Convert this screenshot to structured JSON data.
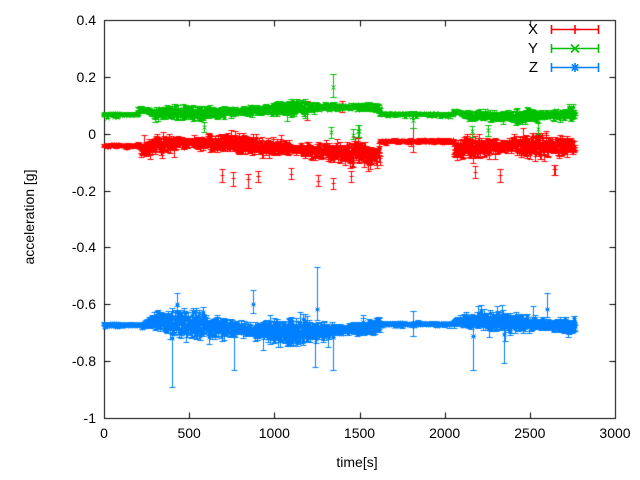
{
  "figure": {
    "background": "#ffffff",
    "text_color": "#000000",
    "axis_color": "#000000"
  },
  "chart_data": {
    "type": "line",
    "style": "yerrorbars-with-points",
    "title": "",
    "xlabel": "time[s]",
    "ylabel": "acceleration [g]",
    "xlim": [
      0,
      3000
    ],
    "ylim": [
      -1,
      0.4
    ],
    "grid": false,
    "xticks": [
      0,
      500,
      1000,
      1500,
      2000,
      2500,
      3000
    ],
    "xticklabels": [
      "0",
      "500",
      "1000",
      "1500",
      "2000",
      "2500",
      "3000"
    ],
    "yticks": [
      0.4,
      0.2,
      0,
      -0.2,
      -0.4,
      -0.6,
      -0.8,
      -1
    ],
    "yticklabels": [
      "0.4",
      "0.2",
      "0",
      "-0.2",
      "-0.4",
      "-0.6",
      "-0.8",
      "-1"
    ],
    "legend": {
      "position": "top-right-inside",
      "entries": [
        "X",
        "Y",
        "Z"
      ]
    },
    "sample_interval_s": 2,
    "time_end_s": 2764,
    "series": [
      {
        "name": "X",
        "color": "#ff0000",
        "marker": "plus",
        "segments": [
          {
            "t0": 0,
            "t1": 215,
            "mean": -0.04,
            "amp": 0.004,
            "ebar": 0.005
          },
          {
            "t0": 215,
            "t1": 1620,
            "mean": -0.06,
            "amp": 0.028,
            "ebar": 0.02
          },
          {
            "t0": 1620,
            "t1": 2052,
            "mean": -0.025,
            "amp": 0.004,
            "ebar": 0.006
          },
          {
            "t0": 2052,
            "t1": 2764,
            "mean": -0.055,
            "amp": 0.026,
            "ebar": 0.018
          }
        ],
        "spikes": [
          {
            "t": 690,
            "v": -0.145,
            "eu": 0.02,
            "ed": 0.025
          },
          {
            "t": 760,
            "v": -0.155,
            "eu": 0.02,
            "ed": 0.03
          },
          {
            "t": 845,
            "v": -0.16,
            "eu": 0.02,
            "ed": 0.03
          },
          {
            "t": 905,
            "v": -0.15,
            "eu": 0.02,
            "ed": 0.02
          },
          {
            "t": 1100,
            "v": -0.14,
            "eu": 0.02,
            "ed": 0.02
          },
          {
            "t": 1190,
            "v": 0.08,
            "eu": 0.035,
            "ed": 0.03
          },
          {
            "t": 1258,
            "v": -0.165,
            "eu": 0.02,
            "ed": 0.02
          },
          {
            "t": 1342,
            "v": -0.175,
            "eu": 0.02,
            "ed": 0.02
          },
          {
            "t": 1398,
            "v": 0.095,
            "eu": 0.02,
            "ed": 0.02
          },
          {
            "t": 1452,
            "v": -0.15,
            "eu": 0.02,
            "ed": 0.02
          },
          {
            "t": 1815,
            "v": -0.025,
            "eu": 0.045,
            "ed": 0.04
          },
          {
            "t": 2180,
            "v": -0.135,
            "eu": 0.02,
            "ed": 0.02
          },
          {
            "t": 2325,
            "v": -0.145,
            "eu": 0.02,
            "ed": 0.025
          },
          {
            "t": 2645,
            "v": -0.125,
            "eu": 0.015,
            "ed": 0.02
          }
        ]
      },
      {
        "name": "Y",
        "color": "#00c000",
        "marker": "cross",
        "segments": [
          {
            "t0": 0,
            "t1": 200,
            "mean": 0.068,
            "amp": 0.004,
            "ebar": 0.005
          },
          {
            "t0": 200,
            "t1": 1620,
            "mean": 0.088,
            "amp": 0.022,
            "ebar": 0.015
          },
          {
            "t0": 1620,
            "t1": 2052,
            "mean": 0.07,
            "amp": 0.004,
            "ebar": 0.006
          },
          {
            "t0": 2052,
            "t1": 2764,
            "mean": 0.082,
            "amp": 0.022,
            "ebar": 0.015
          }
        ],
        "spikes": [
          {
            "t": 590,
            "v": 0.025,
            "eu": 0.015,
            "ed": 0.02
          },
          {
            "t": 1330,
            "v": 0.005,
            "eu": 0.02,
            "ed": 0.02
          },
          {
            "t": 1345,
            "v": 0.165,
            "eu": 0.045,
            "ed": 0.035
          },
          {
            "t": 1460,
            "v": -0.005,
            "eu": 0.02,
            "ed": 0.015
          },
          {
            "t": 1495,
            "v": 0.01,
            "eu": 0.02,
            "ed": 0.02
          },
          {
            "t": 1815,
            "v": 0.05,
            "eu": 0.026,
            "ed": 0.03
          },
          {
            "t": 2160,
            "v": 0.008,
            "eu": 0.02,
            "ed": 0.02
          },
          {
            "t": 2255,
            "v": 0.012,
            "eu": 0.02,
            "ed": 0.02
          },
          {
            "t": 2550,
            "v": 0.018,
            "eu": 0.02,
            "ed": 0.02
          }
        ]
      },
      {
        "name": "Z",
        "color": "#0080ff",
        "marker": "star",
        "segments": [
          {
            "t0": 0,
            "t1": 235,
            "mean": -0.672,
            "amp": 0.004,
            "ebar": 0.005
          },
          {
            "t0": 235,
            "t1": 1620,
            "mean": -0.67,
            "amp": 0.026,
            "ebar": 0.02
          },
          {
            "t0": 1620,
            "t1": 2052,
            "mean": -0.668,
            "amp": 0.004,
            "ebar": 0.006
          },
          {
            "t0": 2052,
            "t1": 2764,
            "mean": -0.665,
            "amp": 0.026,
            "ebar": 0.02
          }
        ],
        "spikes": [
          {
            "t": 400,
            "v": -0.72,
            "eu": 0.03,
            "ed": 0.17
          },
          {
            "t": 430,
            "v": -0.6,
            "eu": 0.04,
            "ed": 0.03
          },
          {
            "t": 762,
            "v": -0.7,
            "eu": 0.03,
            "ed": 0.13
          },
          {
            "t": 872,
            "v": -0.6,
            "eu": 0.05,
            "ed": 0.03
          },
          {
            "t": 1238,
            "v": -0.7,
            "eu": 0.03,
            "ed": 0.12
          },
          {
            "t": 1250,
            "v": -0.615,
            "eu": 0.145,
            "ed": 0.04
          },
          {
            "t": 1345,
            "v": -0.715,
            "eu": 0.03,
            "ed": 0.115
          },
          {
            "t": 1815,
            "v": -0.665,
            "eu": 0.04,
            "ed": 0.045
          },
          {
            "t": 2165,
            "v": -0.71,
            "eu": 0.03,
            "ed": 0.12
          },
          {
            "t": 2350,
            "v": -0.705,
            "eu": 0.03,
            "ed": 0.1
          },
          {
            "t": 2600,
            "v": -0.615,
            "eu": 0.055,
            "ed": 0.03
          }
        ]
      }
    ]
  }
}
